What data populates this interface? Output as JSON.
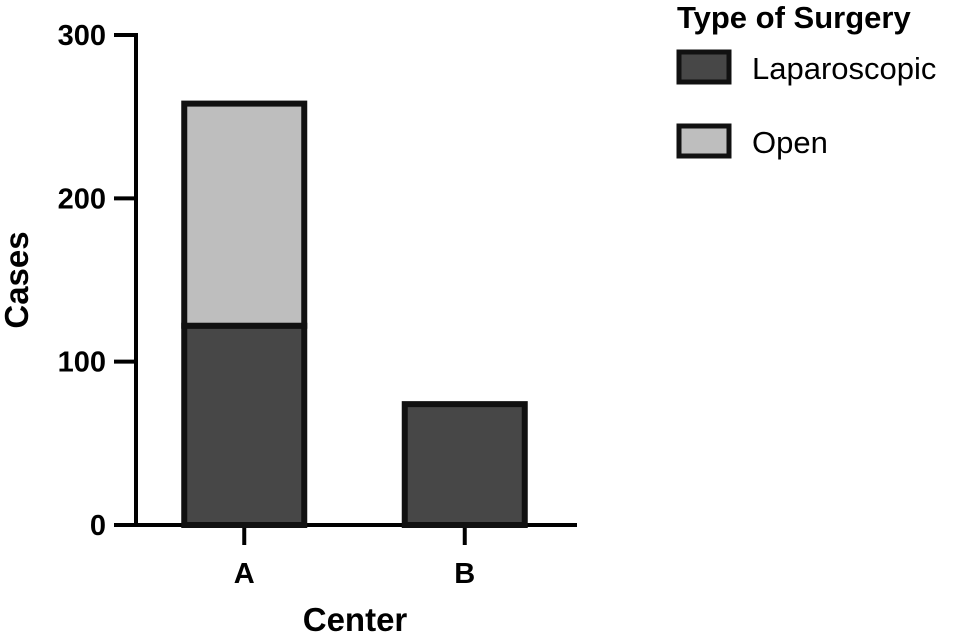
{
  "chart_data": {
    "type": "bar",
    "stacked": true,
    "categories": [
      "A",
      "B"
    ],
    "series": [
      {
        "name": "Laparoscopic",
        "values": [
          122,
          74
        ],
        "color": "#474747"
      },
      {
        "name": "Open",
        "values": [
          136,
          0
        ],
        "color": "#bebebe"
      }
    ],
    "xlabel": "Center",
    "ylabel": "Cases",
    "ylim": [
      0,
      300
    ],
    "yticks": [
      0,
      100,
      200,
      300
    ],
    "legend": {
      "title": "Type of Surgery",
      "placement": "top-right"
    },
    "grid": false
  }
}
